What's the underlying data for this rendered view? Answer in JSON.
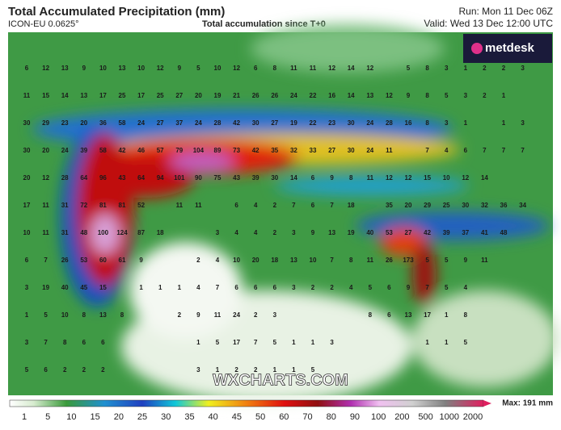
{
  "header": {
    "title": "Total Accumulated Precipitation (mm)",
    "model": "ICON-EU 0.0625°",
    "subtitle": "Total accumulation since T+0",
    "run": "Run: Mon 11 Dec 06Z",
    "valid": "Valid: Wed 13 Dec 12:00 UTC"
  },
  "logo": "metdesk",
  "watermark": "WXCHARTS.COM",
  "grid_values": [
    [
      6,
      12,
      13,
      9,
      10,
      13,
      10,
      12,
      9,
      5,
      10,
      12,
      6,
      8,
      11,
      11,
      12,
      14,
      12,
      null,
      5,
      8,
      3,
      1,
      2,
      2,
      3
    ],
    [
      11,
      15,
      14,
      13,
      17,
      25,
      17,
      25,
      27,
      20,
      19,
      21,
      26,
      26,
      24,
      22,
      16,
      14,
      13,
      12,
      9,
      8,
      5,
      3,
      2,
      1,
      null
    ],
    [
      30,
      29,
      23,
      20,
      36,
      58,
      24,
      27,
      37,
      24,
      28,
      42,
      30,
      27,
      19,
      22,
      23,
      30,
      24,
      28,
      16,
      8,
      3,
      1,
      null,
      1,
      3
    ],
    [
      30,
      20,
      24,
      39,
      58,
      42,
      46,
      57,
      79,
      104,
      89,
      73,
      42,
      35,
      32,
      33,
      27,
      30,
      24,
      11,
      null,
      7,
      4,
      6,
      7,
      7,
      7
    ],
    [
      20,
      12,
      28,
      64,
      96,
      43,
      64,
      94,
      101,
      90,
      75,
      43,
      39,
      30,
      14,
      6,
      9,
      8,
      11,
      12,
      12,
      15,
      10,
      12,
      14,
      null,
      null
    ],
    [
      17,
      11,
      31,
      72,
      81,
      81,
      52,
      null,
      11,
      11,
      null,
      6,
      4,
      2,
      7,
      6,
      7,
      18,
      null,
      35,
      20,
      29,
      25,
      30,
      32,
      36,
      34
    ],
    [
      10,
      11,
      31,
      48,
      100,
      124,
      87,
      18,
      null,
      null,
      3,
      4,
      4,
      2,
      3,
      9,
      13,
      19,
      40,
      53,
      27,
      42,
      39,
      37,
      41,
      48,
      null
    ],
    [
      6,
      7,
      26,
      53,
      60,
      61,
      9,
      null,
      null,
      2,
      4,
      10,
      20,
      18,
      13,
      10,
      7,
      8,
      11,
      26,
      173,
      5,
      5,
      9,
      11,
      null,
      null
    ],
    [
      3,
      19,
      40,
      45,
      15,
      null,
      1,
      1,
      1,
      4,
      7,
      6,
      6,
      6,
      3,
      2,
      2,
      4,
      5,
      6,
      9,
      7,
      5,
      4,
      null,
      null,
      null
    ],
    [
      1,
      5,
      10,
      8,
      13,
      8,
      null,
      null,
      2,
      9,
      11,
      24,
      2,
      3,
      null,
      null,
      null,
      null,
      8,
      6,
      13,
      17,
      1,
      8,
      null,
      null,
      null
    ],
    [
      3,
      7,
      8,
      6,
      6,
      null,
      null,
      null,
      null,
      1,
      5,
      17,
      7,
      5,
      1,
      1,
      3,
      null,
      null,
      null,
      null,
      1,
      1,
      5,
      null,
      null,
      null
    ],
    [
      5,
      6,
      2,
      2,
      2,
      null,
      null,
      null,
      null,
      3,
      1,
      2,
      2,
      1,
      1,
      5,
      null,
      null,
      null,
      null,
      null,
      null,
      null,
      null,
      null,
      null,
      null
    ]
  ],
  "legend": {
    "ticks": [
      1,
      5,
      10,
      15,
      20,
      25,
      30,
      35,
      40,
      45,
      50,
      60,
      70,
      80,
      90,
      100,
      200,
      500,
      1000,
      2000
    ],
    "max_label": "Max: 191 mm"
  }
}
